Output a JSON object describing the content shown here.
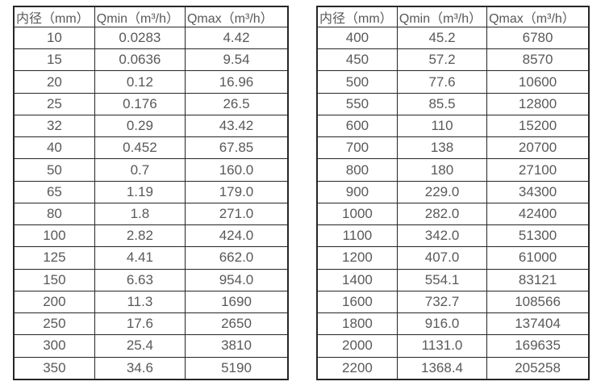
{
  "page": {
    "background": "#ffffff"
  },
  "colors": {
    "border": "#262626",
    "text": "#595959"
  },
  "tables": [
    {
      "title": "flow-rates-small-diameters",
      "headers": [
        "内径（mm）",
        "Qmin（m³/h）",
        "Qmax（m³/h）"
      ],
      "rows": [
        [
          "10",
          "0.0283",
          "4.42"
        ],
        [
          "15",
          "0.0636",
          "9.54"
        ],
        [
          "20",
          "0.12",
          "16.96"
        ],
        [
          "25",
          "0.176",
          "26.5"
        ],
        [
          "32",
          "0.29",
          "43.42"
        ],
        [
          "40",
          "0.452",
          "67.85"
        ],
        [
          "50",
          "0.7",
          "160.0"
        ],
        [
          "65",
          "1.19",
          "179.0"
        ],
        [
          "80",
          "1.8",
          "271.0"
        ],
        [
          "100",
          "2.82",
          "424.0"
        ],
        [
          "125",
          "4.41",
          "662.0"
        ],
        [
          "150",
          "6.63",
          "954.0"
        ],
        [
          "200",
          "11.3",
          "1690"
        ],
        [
          "250",
          "17.6",
          "2650"
        ],
        [
          "300",
          "25.4",
          "3810"
        ],
        [
          "350",
          "34.6",
          "5190"
        ]
      ]
    },
    {
      "title": "flow-rates-large-diameters",
      "headers": [
        "内径（mm）",
        "Qmin（m³/h）",
        "Qmax（m³/h）"
      ],
      "rows": [
        [
          "400",
          "45.2",
          "6780"
        ],
        [
          "450",
          "57.2",
          "8570"
        ],
        [
          "500",
          "77.6",
          "10600"
        ],
        [
          "550",
          "85.5",
          "12800"
        ],
        [
          "600",
          "110",
          "15200"
        ],
        [
          "700",
          "138",
          "20700"
        ],
        [
          "800",
          "180",
          "27100"
        ],
        [
          "900",
          "229.0",
          "34300"
        ],
        [
          "1000",
          "282.0",
          "42400"
        ],
        [
          "1100",
          "342.0",
          "51300"
        ],
        [
          "1200",
          "407.0",
          "61000"
        ],
        [
          "1400",
          "554.1",
          "83121"
        ],
        [
          "1600",
          "732.7",
          "108566"
        ],
        [
          "1800",
          "916.0",
          "137404"
        ],
        [
          "2000",
          "1131.0",
          "169635"
        ],
        [
          "2200",
          "1368.4",
          "205258"
        ]
      ]
    }
  ]
}
